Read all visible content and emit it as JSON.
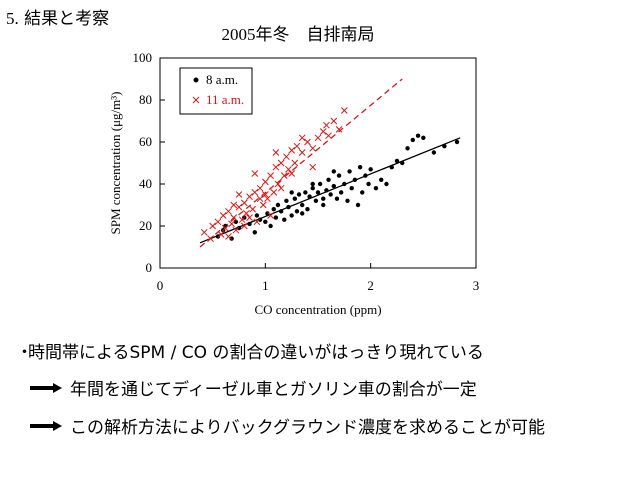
{
  "page": {
    "heading_number": "5.",
    "heading_text": "結果と考察"
  },
  "chart_data": {
    "type": "scatter",
    "title": "2005年冬　自排南局",
    "xlabel": "CO concentration (ppm)",
    "ylabel": "SPM concentration (μg/m³)",
    "xlim": [
      0,
      3
    ],
    "ylim": [
      0,
      100
    ],
    "xticks": [
      0,
      1,
      2,
      3
    ],
    "yticks": [
      0,
      20,
      40,
      60,
      80,
      100
    ],
    "grid": false,
    "legend_position": "top-left",
    "series": [
      {
        "name": "8 a.m.",
        "marker": "dot",
        "color": "#000000",
        "fit": {
          "x": [
            0.38,
            2.85
          ],
          "y": [
            12,
            62
          ],
          "style": "solid"
        },
        "points": [
          [
            0.55,
            15
          ],
          [
            0.6,
            18
          ],
          [
            0.62,
            20
          ],
          [
            0.68,
            14
          ],
          [
            0.72,
            22
          ],
          [
            0.75,
            19
          ],
          [
            0.8,
            24
          ],
          [
            0.85,
            21
          ],
          [
            0.9,
            17
          ],
          [
            0.92,
            25
          ],
          [
            0.95,
            23
          ],
          [
            1.0,
            22
          ],
          [
            1.02,
            26
          ],
          [
            1.05,
            20
          ],
          [
            1.08,
            28
          ],
          [
            1.1,
            24
          ],
          [
            1.12,
            30
          ],
          [
            1.15,
            27
          ],
          [
            1.18,
            23
          ],
          [
            1.2,
            32
          ],
          [
            1.22,
            29
          ],
          [
            1.25,
            25
          ],
          [
            1.28,
            33
          ],
          [
            1.3,
            27
          ],
          [
            1.32,
            35
          ],
          [
            1.35,
            30
          ],
          [
            1.38,
            36
          ],
          [
            1.4,
            28
          ],
          [
            1.42,
            34
          ],
          [
            1.45,
            38
          ],
          [
            1.48,
            32
          ],
          [
            1.5,
            36
          ],
          [
            1.52,
            40
          ],
          [
            1.55,
            33
          ],
          [
            1.58,
            37
          ],
          [
            1.6,
            42
          ],
          [
            1.62,
            35
          ],
          [
            1.65,
            39
          ],
          [
            1.68,
            33
          ],
          [
            1.7,
            44
          ],
          [
            1.72,
            36
          ],
          [
            1.75,
            40
          ],
          [
            1.78,
            32
          ],
          [
            1.8,
            46
          ],
          [
            1.82,
            38
          ],
          [
            1.85,
            42
          ],
          [
            1.88,
            30
          ],
          [
            1.9,
            48
          ],
          [
            1.92,
            36
          ],
          [
            1.95,
            44
          ],
          [
            1.98,
            40
          ],
          [
            2.0,
            47
          ],
          [
            2.05,
            38
          ],
          [
            2.1,
            42
          ],
          [
            2.15,
            40
          ],
          [
            2.2,
            48
          ],
          [
            2.25,
            51
          ],
          [
            2.3,
            50
          ],
          [
            2.35,
            57
          ],
          [
            2.4,
            61
          ],
          [
            2.45,
            63
          ],
          [
            2.5,
            62
          ],
          [
            2.6,
            55
          ],
          [
            2.7,
            58
          ],
          [
            2.82,
            60
          ],
          [
            1.25,
            36
          ],
          [
            1.35,
            26
          ],
          [
            1.45,
            40
          ],
          [
            1.55,
            30
          ],
          [
            1.65,
            46
          ]
        ]
      },
      {
        "name": "11 a.m.",
        "marker": "cross",
        "color": "#d01818",
        "fit": {
          "x": [
            0.38,
            2.3
          ],
          "y": [
            10,
            90
          ],
          "style": "dashed"
        },
        "points": [
          [
            0.42,
            17
          ],
          [
            0.48,
            14
          ],
          [
            0.5,
            20
          ],
          [
            0.55,
            22
          ],
          [
            0.58,
            16
          ],
          [
            0.6,
            25
          ],
          [
            0.62,
            19
          ],
          [
            0.65,
            27
          ],
          [
            0.68,
            21
          ],
          [
            0.7,
            24
          ],
          [
            0.72,
            18
          ],
          [
            0.75,
            29
          ],
          [
            0.78,
            23
          ],
          [
            0.8,
            31
          ],
          [
            0.82,
            26
          ],
          [
            0.85,
            34
          ],
          [
            0.88,
            28
          ],
          [
            0.9,
            36
          ],
          [
            0.92,
            22
          ],
          [
            0.95,
            38
          ],
          [
            0.98,
            30
          ],
          [
            1.0,
            41
          ],
          [
            1.02,
            33
          ],
          [
            1.05,
            44
          ],
          [
            1.08,
            36
          ],
          [
            1.1,
            48
          ],
          [
            1.12,
            40
          ],
          [
            1.15,
            50
          ],
          [
            1.18,
            44
          ],
          [
            1.2,
            53
          ],
          [
            1.22,
            47
          ],
          [
            1.25,
            56
          ],
          [
            1.28,
            50
          ],
          [
            1.3,
            58
          ],
          [
            1.35,
            55
          ],
          [
            1.4,
            60
          ],
          [
            1.45,
            57
          ],
          [
            1.5,
            62
          ],
          [
            1.55,
            65
          ],
          [
            1.58,
            68
          ],
          [
            1.6,
            63
          ],
          [
            1.65,
            70
          ],
          [
            1.7,
            66
          ],
          [
            1.75,
            75
          ],
          [
            0.7,
            30
          ],
          [
            0.8,
            20
          ],
          [
            0.9,
            45
          ],
          [
            1.0,
            35
          ],
          [
            1.1,
            55
          ],
          [
            1.05,
            25
          ],
          [
            0.65,
            15
          ],
          [
            0.75,
            35
          ],
          [
            0.85,
            24
          ],
          [
            0.95,
            33
          ],
          [
            1.15,
            38
          ],
          [
            1.25,
            45
          ],
          [
            1.35,
            62
          ],
          [
            1.45,
            48
          ]
        ]
      }
    ]
  },
  "notes": {
    "bullet_symbol": "・",
    "bullet_text": "時間帯によるSPM / CO の割合の違いがはっきり現れている",
    "arrow_items": [
      "年間を通じてディーゼル車とガソリン車の割合が一定",
      "この解析方法によりバックグラウンド濃度を求めることが可能"
    ]
  }
}
